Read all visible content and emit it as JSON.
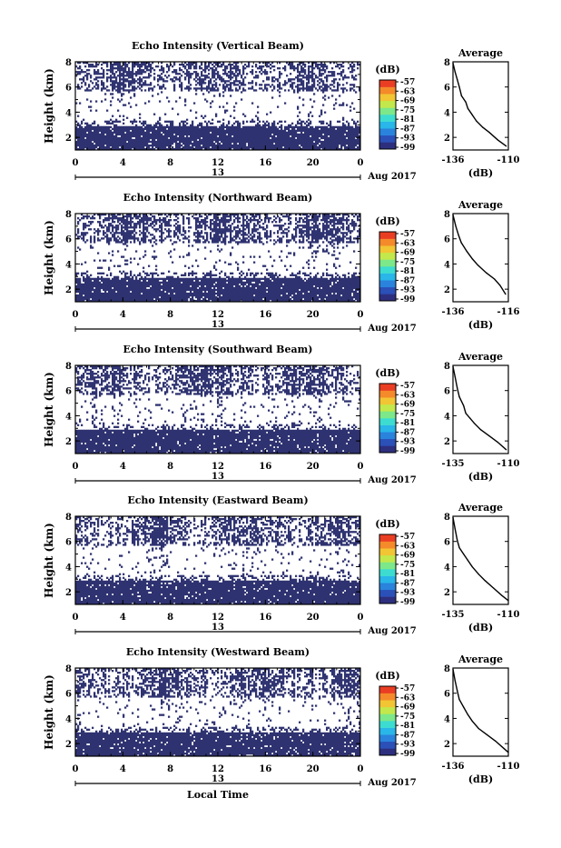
{
  "figure": {
    "xlabel_bottom": "Local Time",
    "date_label": "Aug 2017",
    "day_label": "13",
    "colorbar_unit": "(dB)",
    "colorbar_ticks": [
      "-57",
      "-63",
      "-69",
      "-75",
      "-81",
      "-87",
      "-93",
      "-99"
    ],
    "colorbar_colors": [
      "#2d2f7e",
      "#2b50b8",
      "#2a83dc",
      "#29b6e8",
      "#3ddcd0",
      "#7ce88a",
      "#c3e84c",
      "#f1c534",
      "#f58a2a",
      "#ea3e23"
    ],
    "fill_color": "#2e3270",
    "avg_title": "Average",
    "avg_xlabel": "(dB)",
    "height_label": "Height (km)"
  },
  "chart_data": [
    {
      "type": "heatmap",
      "title": "Echo Intensity (Vertical Beam)",
      "ylabel": "Height (km)",
      "x_ticks": [
        "0",
        "4",
        "8",
        "12",
        "16",
        "20",
        "0"
      ],
      "y_ticks": [
        "2",
        "4",
        "6",
        "8"
      ],
      "xlim": [
        0,
        24
      ],
      "ylim": [
        1,
        8
      ],
      "colorbar": {
        "label": "(dB)",
        "ticks": [
          -57,
          -63,
          -69,
          -75,
          -81,
          -87,
          -93,
          -99
        ]
      },
      "avg_profile": {
        "title": "Average",
        "xlabel": "(dB)",
        "x_ticks": [
          "-136",
          "-110"
        ],
        "xlim": [
          -136,
          -110
        ],
        "y_ticks": [
          "2",
          "4",
          "6",
          "8"
        ],
        "points": [
          [
            -136,
            7.9
          ],
          [
            -135,
            7.2
          ],
          [
            -134,
            6.6
          ],
          [
            -133,
            6.0
          ],
          [
            -132,
            5.3
          ],
          [
            -130,
            4.8
          ],
          [
            -129,
            4.3
          ],
          [
            -127,
            3.8
          ],
          [
            -125,
            3.3
          ],
          [
            -122,
            2.8
          ],
          [
            -119,
            2.4
          ],
          [
            -115,
            1.8
          ],
          [
            -111,
            1.3
          ]
        ]
      },
      "seed": 11
    },
    {
      "type": "heatmap",
      "title": "Echo Intensity (Northward Beam)",
      "ylabel": "Height (km)",
      "x_ticks": [
        "0",
        "4",
        "8",
        "12",
        "16",
        "20",
        "0"
      ],
      "y_ticks": [
        "2",
        "4",
        "6",
        "8"
      ],
      "xlim": [
        0,
        24
      ],
      "ylim": [
        1,
        8
      ],
      "colorbar": {
        "label": "(dB)",
        "ticks": [
          -57,
          -63,
          -69,
          -75,
          -81,
          -87,
          -93,
          -99
        ]
      },
      "avg_profile": {
        "title": "Average",
        "xlabel": "(dB)",
        "x_ticks": [
          "-136",
          "-116"
        ],
        "xlim": [
          -136,
          -116
        ],
        "y_ticks": [
          "2",
          "4",
          "6",
          "8"
        ],
        "points": [
          [
            -136,
            7.9
          ],
          [
            -135,
            7.0
          ],
          [
            -134,
            6.3
          ],
          [
            -133,
            5.7
          ],
          [
            -131,
            5.0
          ],
          [
            -129,
            4.4
          ],
          [
            -127,
            3.9
          ],
          [
            -124,
            3.3
          ],
          [
            -121,
            2.8
          ],
          [
            -119,
            2.3
          ],
          [
            -117,
            1.6
          ]
        ]
      },
      "seed": 23
    },
    {
      "type": "heatmap",
      "title": "Echo Intensity (Southward Beam)",
      "ylabel": "Height (km)",
      "x_ticks": [
        "0",
        "4",
        "8",
        "12",
        "16",
        "20",
        "0"
      ],
      "y_ticks": [
        "2",
        "4",
        "6",
        "8"
      ],
      "xlim": [
        0,
        24
      ],
      "ylim": [
        1,
        8
      ],
      "colorbar": {
        "label": "(dB)",
        "ticks": [
          -57,
          -63,
          -69,
          -75,
          -81,
          -87,
          -93,
          -99
        ]
      },
      "avg_profile": {
        "title": "Average",
        "xlabel": "(dB)",
        "x_ticks": [
          "-135",
          "-110"
        ],
        "xlim": [
          -136,
          -110
        ],
        "y_ticks": [
          "2",
          "4",
          "6",
          "8"
        ],
        "points": [
          [
            -136,
            7.9
          ],
          [
            -135,
            7.1
          ],
          [
            -134,
            6.2
          ],
          [
            -133,
            5.5
          ],
          [
            -131,
            4.8
          ],
          [
            -130,
            4.2
          ],
          [
            -128,
            3.8
          ],
          [
            -126,
            3.4
          ],
          [
            -123,
            2.9
          ],
          [
            -119,
            2.4
          ],
          [
            -115,
            1.9
          ],
          [
            -111,
            1.3
          ]
        ]
      },
      "seed": 37
    },
    {
      "type": "heatmap",
      "title": "Echo Intensity (Eastward Beam)",
      "ylabel": "Height (km)",
      "x_ticks": [
        "0",
        "4",
        "8",
        "12",
        "16",
        "20",
        "0"
      ],
      "y_ticks": [
        "2",
        "4",
        "6",
        "8"
      ],
      "xlim": [
        0,
        24
      ],
      "ylim": [
        1,
        8
      ],
      "colorbar": {
        "label": "(dB)",
        "ticks": [
          -57,
          -63,
          -69,
          -75,
          -81,
          -87,
          -93,
          -99
        ]
      },
      "avg_profile": {
        "title": "Average",
        "xlabel": "(dB)",
        "x_ticks": [
          "-135",
          "-110"
        ],
        "xlim": [
          -136,
          -110
        ],
        "y_ticks": [
          "2",
          "4",
          "6",
          "8"
        ],
        "points": [
          [
            -136,
            7.9
          ],
          [
            -135,
            7.0
          ],
          [
            -134,
            6.1
          ],
          [
            -133,
            5.5
          ],
          [
            -131,
            5.0
          ],
          [
            -129,
            4.5
          ],
          [
            -127,
            4.0
          ],
          [
            -124,
            3.4
          ],
          [
            -121,
            2.9
          ],
          [
            -117,
            2.3
          ],
          [
            -113,
            1.7
          ],
          [
            -110,
            1.3
          ]
        ]
      },
      "seed": 53
    },
    {
      "type": "heatmap",
      "title": "Echo Intensity (Westward Beam)",
      "ylabel": "Height (km)",
      "x_ticks": [
        "0",
        "4",
        "8",
        "12",
        "16",
        "20",
        "0"
      ],
      "y_ticks": [
        "2",
        "4",
        "6",
        "8"
      ],
      "xlim": [
        0,
        24
      ],
      "ylim": [
        1,
        8
      ],
      "colorbar": {
        "label": "(dB)",
        "ticks": [
          -57,
          -63,
          -69,
          -75,
          -81,
          -87,
          -93,
          -99
        ]
      },
      "avg_profile": {
        "title": "Average",
        "xlabel": "(dB)",
        "x_ticks": [
          "-136",
          "-110"
        ],
        "xlim": [
          -136,
          -110
        ],
        "y_ticks": [
          "2",
          "4",
          "6",
          "8"
        ],
        "points": [
          [
            -136,
            7.9
          ],
          [
            -135,
            7.0
          ],
          [
            -134,
            6.2
          ],
          [
            -133,
            5.5
          ],
          [
            -131,
            4.9
          ],
          [
            -129,
            4.3
          ],
          [
            -127,
            3.8
          ],
          [
            -124,
            3.2
          ],
          [
            -120,
            2.7
          ],
          [
            -116,
            2.2
          ],
          [
            -112,
            1.6
          ],
          [
            -110,
            1.3
          ]
        ]
      },
      "seed": 71
    }
  ]
}
